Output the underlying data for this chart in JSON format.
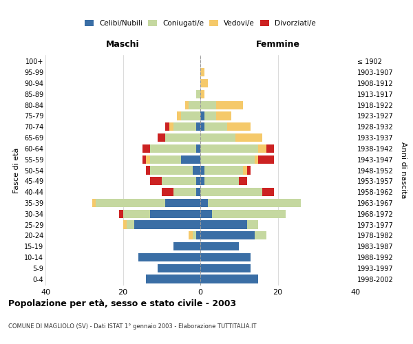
{
  "age_groups": [
    "0-4",
    "5-9",
    "10-14",
    "15-19",
    "20-24",
    "25-29",
    "30-34",
    "35-39",
    "40-44",
    "45-49",
    "50-54",
    "55-59",
    "60-64",
    "65-69",
    "70-74",
    "75-79",
    "80-84",
    "85-89",
    "90-94",
    "95-99",
    "100+"
  ],
  "birth_years": [
    "1998-2002",
    "1993-1997",
    "1988-1992",
    "1983-1987",
    "1978-1982",
    "1973-1977",
    "1968-1972",
    "1963-1967",
    "1958-1962",
    "1953-1957",
    "1948-1952",
    "1943-1947",
    "1938-1942",
    "1933-1937",
    "1928-1932",
    "1923-1927",
    "1918-1922",
    "1913-1917",
    "1908-1912",
    "1903-1907",
    "≤ 1902"
  ],
  "maschi": {
    "celibi": [
      14,
      11,
      16,
      7,
      1,
      17,
      13,
      9,
      1,
      1,
      2,
      5,
      1,
      0,
      1,
      0,
      0,
      0,
      0,
      0,
      0
    ],
    "coniugati": [
      0,
      0,
      0,
      0,
      1,
      2,
      7,
      18,
      6,
      9,
      11,
      8,
      12,
      9,
      6,
      5,
      3,
      1,
      0,
      0,
      0
    ],
    "vedovi": [
      0,
      0,
      0,
      0,
      1,
      1,
      0,
      1,
      0,
      0,
      0,
      1,
      0,
      0,
      1,
      1,
      1,
      0,
      0,
      0,
      0
    ],
    "divorziati": [
      0,
      0,
      0,
      0,
      0,
      0,
      1,
      0,
      3,
      3,
      1,
      1,
      2,
      2,
      1,
      0,
      0,
      0,
      0,
      0,
      0
    ]
  },
  "femmine": {
    "nubili": [
      15,
      13,
      13,
      10,
      14,
      12,
      3,
      2,
      0,
      1,
      1,
      0,
      0,
      0,
      1,
      1,
      0,
      0,
      0,
      0,
      0
    ],
    "coniugate": [
      0,
      0,
      0,
      0,
      3,
      3,
      19,
      24,
      16,
      9,
      10,
      14,
      15,
      9,
      6,
      3,
      4,
      0,
      0,
      0,
      0
    ],
    "vedove": [
      0,
      0,
      0,
      0,
      0,
      0,
      0,
      0,
      0,
      0,
      1,
      1,
      2,
      7,
      6,
      4,
      7,
      1,
      2,
      1,
      0
    ],
    "divorziate": [
      0,
      0,
      0,
      0,
      0,
      0,
      0,
      0,
      3,
      2,
      1,
      4,
      2,
      0,
      0,
      0,
      0,
      0,
      0,
      0,
      0
    ]
  },
  "colors": {
    "celibi": "#3a6ea5",
    "coniugati": "#c5d8a0",
    "vedovi": "#f5c96a",
    "divorziati": "#cc2222"
  },
  "xlim": 40,
  "title": "Popolazione per età, sesso e stato civile - 2003",
  "subtitle": "COMUNE DI MAGLIOLO (SV) - Dati ISTAT 1° gennaio 2003 - Elaborazione TUTTITALIA.IT",
  "ylabel_left": "Fasce di età",
  "ylabel_right": "Anni di nascita",
  "xlabel_left": "Maschi",
  "xlabel_right": "Femmine",
  "legend_labels": [
    "Celibi/Nubili",
    "Coniugati/e",
    "Vedovi/e",
    "Divorziati/e"
  ],
  "background_color": "#ffffff",
  "grid_color": "#cccccc"
}
